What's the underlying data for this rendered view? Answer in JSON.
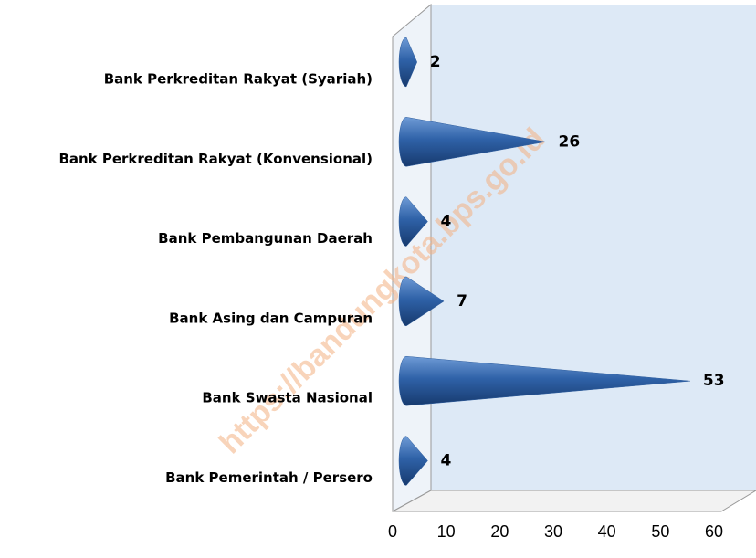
{
  "chart_data": {
    "type": "bar",
    "orientation": "horizontal",
    "categories": [
      "Bank Perkreditan Rakyat (Syariah)",
      "Bank Perkreditan Rakyat (Konvensional)",
      "Bank Pembangunan Daerah",
      "Bank Asing dan Campuran",
      "Bank Swasta Nasional",
      "Bank Pemerintah / Persero"
    ],
    "values": [
      2,
      26,
      4,
      7,
      53,
      4
    ],
    "color": "#2f5e9e",
    "xlim": [
      0,
      60
    ],
    "xticks": [
      0,
      10,
      20,
      30,
      40,
      50,
      60
    ],
    "watermark": "https://bandungkota.bps.go.id"
  }
}
